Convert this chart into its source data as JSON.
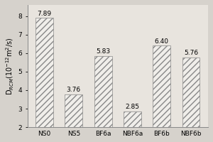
{
  "categories": [
    "NS0",
    "NS5",
    "BF6a",
    "NBF6a",
    "BF6b",
    "NBF6b"
  ],
  "values": [
    7.89,
    3.76,
    5.83,
    2.85,
    6.4,
    5.76
  ],
  "bar_color": "#f0eeea",
  "bar_edgecolor": "#888888",
  "hatch": "////",
  "ylabel": "D$_{RCM}$(10$^{-12}$m$^{2}$/s)",
  "ylim": [
    2,
    8.6
  ],
  "yticks": [
    2,
    3,
    4,
    5,
    6,
    7,
    8
  ],
  "background_color": "#d6d2cc",
  "plot_bg_color": "#e8e4de",
  "label_fontsize": 6.5,
  "tick_fontsize": 6.5,
  "value_fontsize": 6.5,
  "ylabel_fontsize": 7.0
}
